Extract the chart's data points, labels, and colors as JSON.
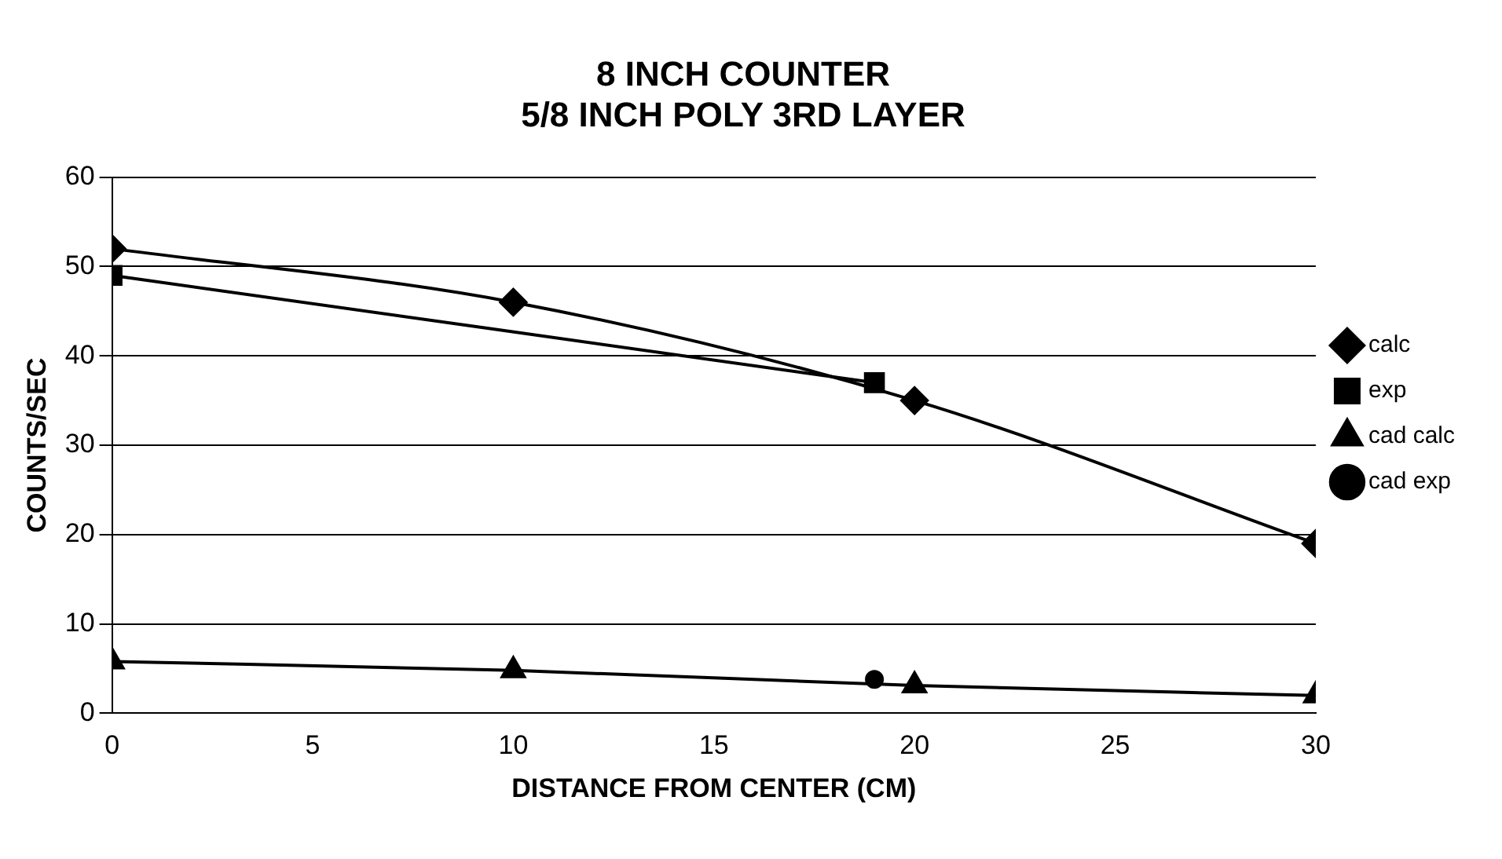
{
  "chart_data": {
    "type": "line",
    "title": [
      "8 INCH COUNTER",
      "5/8 INCH POLY 3RD LAYER"
    ],
    "xlabel": "DISTANCE FROM CENTER (CM)",
    "ylabel": "COUNTS/SEC",
    "xlim": [
      0,
      30
    ],
    "xticks": [
      0,
      5,
      10,
      15,
      20,
      25,
      30
    ],
    "ylim": [
      0,
      60
    ],
    "yticks": [
      0,
      10,
      20,
      30,
      40,
      50,
      60
    ],
    "grid": "y",
    "legend": "right",
    "series": [
      {
        "name": "calc",
        "color": "#000000",
        "marker": "diamond",
        "x": [
          0,
          10,
          20,
          30
        ],
        "values": [
          52,
          46,
          35,
          19
        ]
      },
      {
        "name": "exp",
        "color": "#000000",
        "marker": "square",
        "x": [
          0,
          19
        ],
        "values": [
          49,
          37
        ]
      },
      {
        "name": "cad calc",
        "color": "#000000",
        "marker": "triangle",
        "x": [
          0,
          10,
          20,
          30
        ],
        "values": [
          5.8,
          4.8,
          3.1,
          2
        ]
      },
      {
        "name": "cad exp",
        "color": "#000000",
        "marker": "circle",
        "x": [
          19
        ],
        "values": [
          3.8
        ]
      }
    ]
  }
}
